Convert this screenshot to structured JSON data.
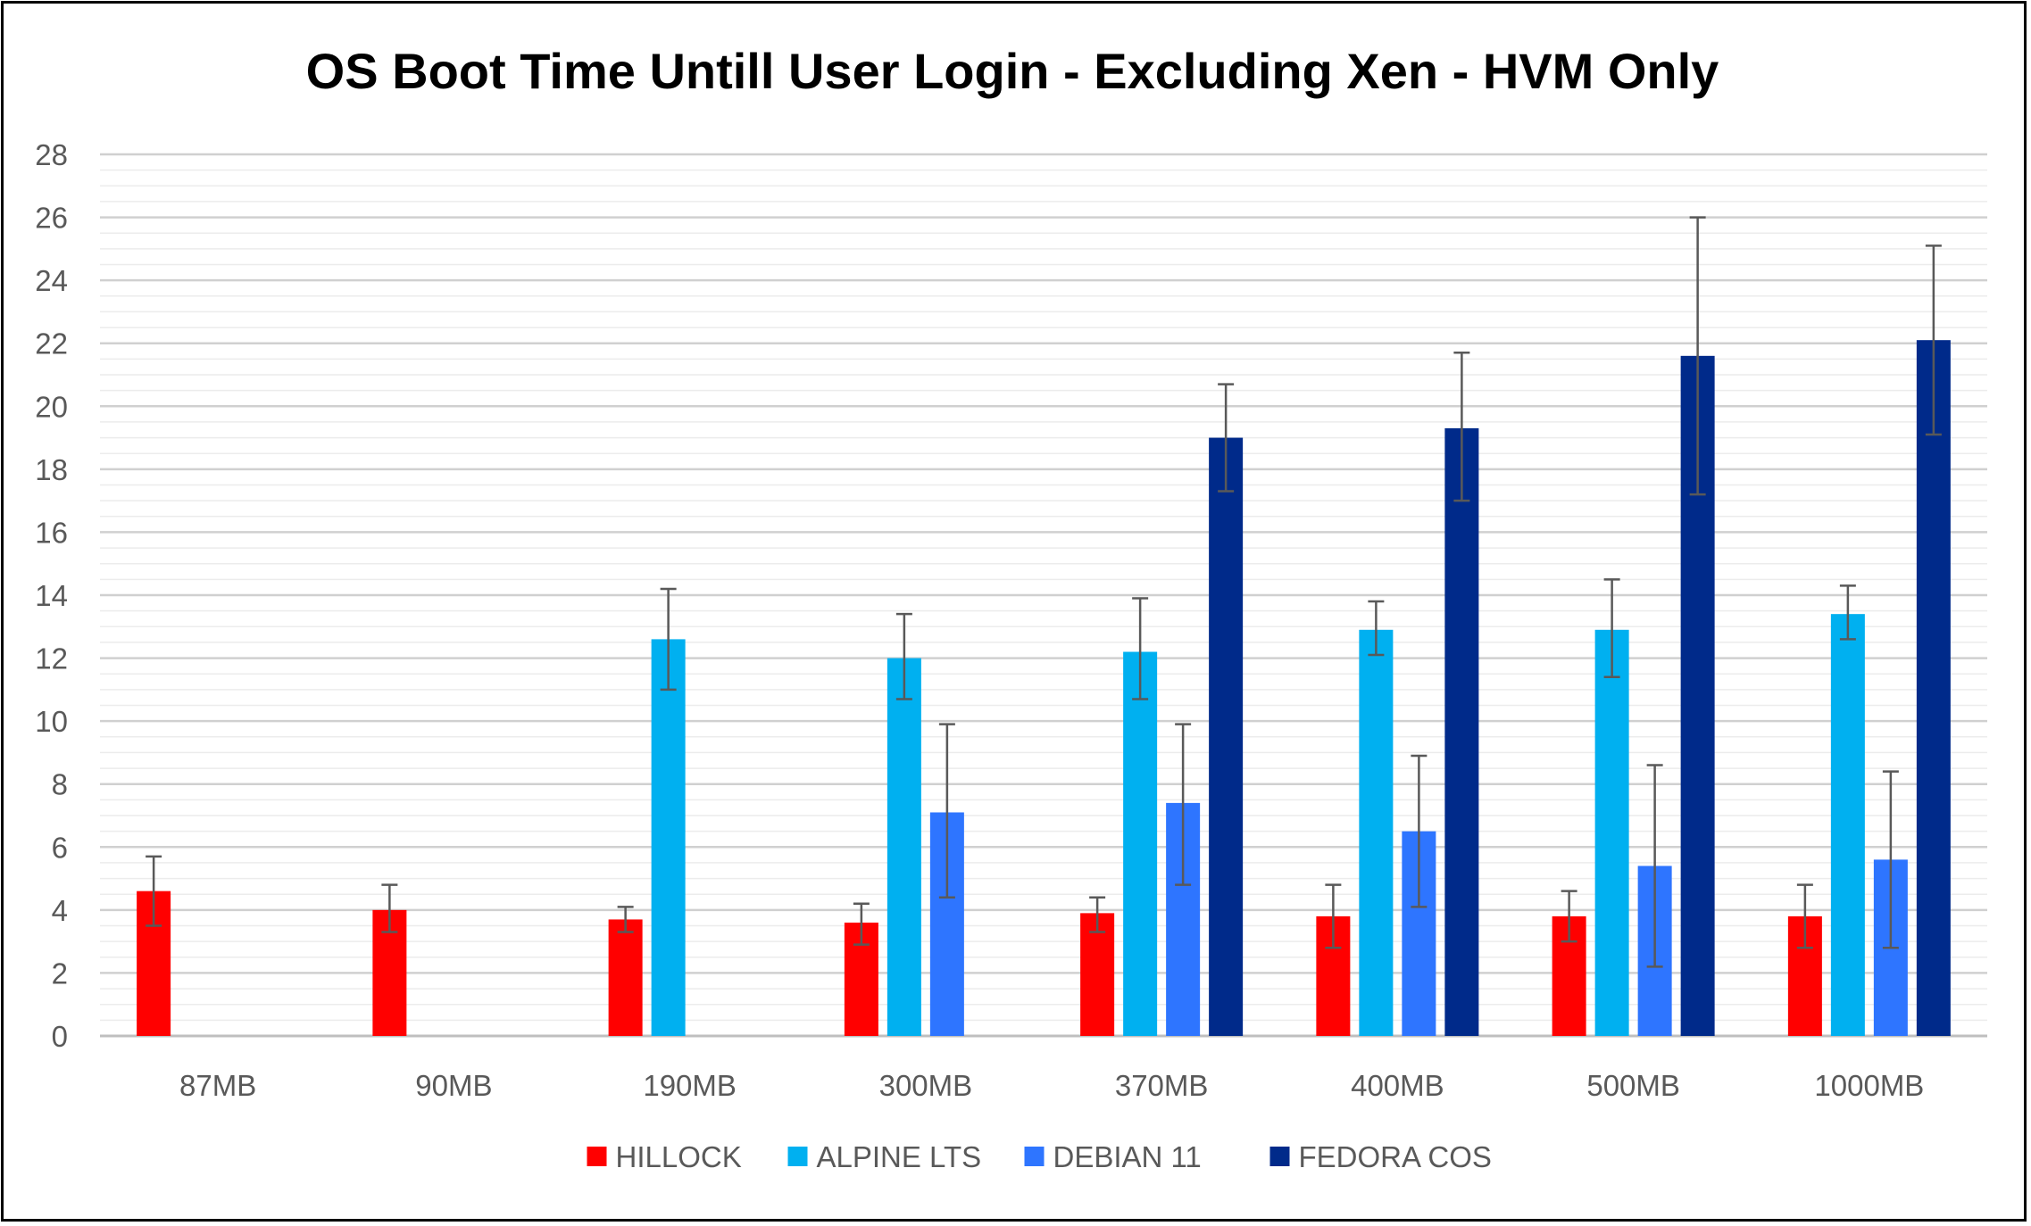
{
  "chart_data": {
    "type": "bar",
    "title": "OS Boot Time Untill User Login - Excluding Xen - HVM Only",
    "xlabel": "",
    "ylabel": "",
    "ylim": [
      0,
      28
    ],
    "y_ticks": [
      "0",
      "2",
      "4",
      "6",
      "8",
      "10",
      "12",
      "14",
      "16",
      "18",
      "20",
      "22",
      "24",
      "26",
      "28"
    ],
    "grid": true,
    "legend_position": "bottom",
    "categories": [
      "87MB",
      "90MB",
      "190MB",
      "300MB",
      "370MB",
      "400MB",
      "500MB",
      "1000MB"
    ],
    "series": [
      {
        "name": "HILLOCK",
        "color": "#ff0000",
        "values": [
          4.6,
          4.0,
          3.7,
          3.6,
          3.9,
          3.8,
          3.8,
          3.8
        ],
        "error_low": [
          3.5,
          3.3,
          3.3,
          2.9,
          3.3,
          2.8,
          3.0,
          2.8
        ],
        "error_high": [
          5.7,
          4.8,
          4.1,
          4.2,
          4.4,
          4.8,
          4.6,
          4.8
        ]
      },
      {
        "name": "ALPINE LTS",
        "color": "#00b0f0",
        "values": [
          null,
          null,
          12.6,
          12.0,
          12.2,
          12.9,
          12.9,
          13.4
        ],
        "error_low": [
          null,
          null,
          11.0,
          10.7,
          10.7,
          12.1,
          11.4,
          12.6
        ],
        "error_high": [
          null,
          null,
          14.2,
          13.4,
          13.9,
          13.8,
          14.5,
          14.3
        ]
      },
      {
        "name": "DEBIAN 11",
        "color": "#2e75ff",
        "values": [
          null,
          null,
          null,
          7.1,
          7.4,
          6.5,
          5.4,
          5.6
        ],
        "error_low": [
          null,
          null,
          null,
          4.4,
          4.8,
          4.1,
          2.2,
          2.8
        ],
        "error_high": [
          null,
          null,
          null,
          9.9,
          9.9,
          8.9,
          8.6,
          8.4
        ]
      },
      {
        "name": "FEDORA COS",
        "color": "#002a8a",
        "values": [
          null,
          null,
          null,
          null,
          19.0,
          19.3,
          21.6,
          22.1
        ],
        "error_low": [
          null,
          null,
          null,
          null,
          17.3,
          17.0,
          17.2,
          19.1
        ],
        "error_high": [
          null,
          null,
          null,
          null,
          20.7,
          21.7,
          26.0,
          25.1
        ]
      }
    ]
  }
}
